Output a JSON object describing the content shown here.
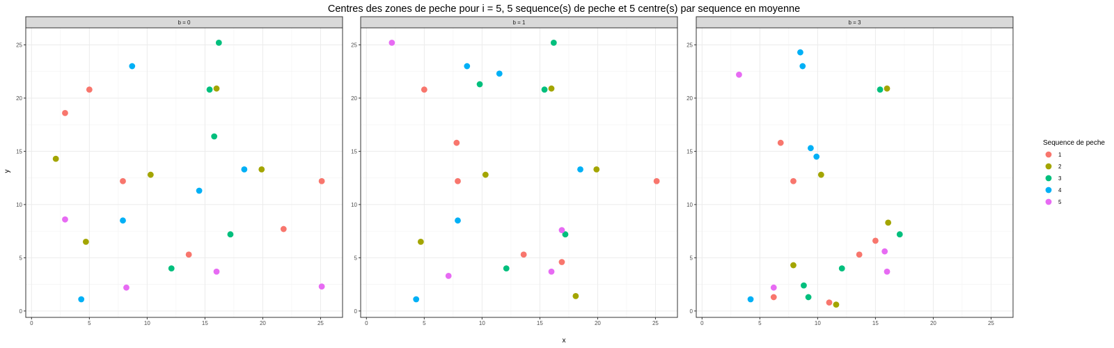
{
  "chart_data": {
    "type": "scatter",
    "title": "Centres des zones de peche pour i = 5, 5 sequence(s) de peche et 5 centre(s) par sequence en moyenne",
    "xlabel": "x",
    "ylabel": "y",
    "xlim": [
      -0.5,
      26.9
    ],
    "ylim": [
      -0.6,
      26.6
    ],
    "x_ticks": [
      0,
      5,
      10,
      15,
      20,
      25
    ],
    "y_ticks": [
      0,
      5,
      10,
      15,
      20,
      25
    ],
    "grid": true,
    "legend": {
      "title": "Sequence de peche",
      "position": "right",
      "entries": [
        "1",
        "2",
        "3",
        "4",
        "5"
      ]
    },
    "colors": {
      "1": "#F8766D",
      "2": "#A3A500",
      "3": "#00BF7D",
      "4": "#00B0F6",
      "5": "#E76BF3"
    },
    "panels": [
      {
        "label": "b = 0",
        "series": [
          {
            "name": "1",
            "points": [
              [
                5.0,
                20.8
              ],
              [
                2.9,
                18.6
              ],
              [
                7.9,
                12.2
              ],
              [
                25.1,
                12.2
              ],
              [
                21.8,
                7.7
              ],
              [
                13.6,
                5.3
              ]
            ]
          },
          {
            "name": "2",
            "points": [
              [
                16.0,
                20.9
              ],
              [
                2.1,
                14.3
              ],
              [
                10.3,
                12.8
              ],
              [
                19.9,
                13.3
              ],
              [
                4.7,
                6.5
              ]
            ]
          },
          {
            "name": "3",
            "points": [
              [
                16.2,
                25.2
              ],
              [
                15.4,
                20.8
              ],
              [
                15.8,
                16.4
              ],
              [
                17.2,
                7.2
              ],
              [
                12.1,
                4.0
              ]
            ]
          },
          {
            "name": "4",
            "points": [
              [
                8.7,
                23.0
              ],
              [
                18.4,
                13.3
              ],
              [
                14.5,
                11.3
              ],
              [
                7.9,
                8.5
              ],
              [
                4.3,
                1.1
              ]
            ]
          },
          {
            "name": "5",
            "points": [
              [
                2.9,
                8.6
              ],
              [
                16.0,
                3.7
              ],
              [
                8.2,
                2.2
              ],
              [
                25.1,
                2.3
              ]
            ]
          }
        ]
      },
      {
        "label": "b = 1",
        "series": [
          {
            "name": "1",
            "points": [
              [
                5.0,
                20.8
              ],
              [
                7.8,
                15.8
              ],
              [
                7.9,
                12.2
              ],
              [
                25.1,
                12.2
              ],
              [
                16.9,
                4.6
              ],
              [
                13.6,
                5.3
              ]
            ]
          },
          {
            "name": "2",
            "points": [
              [
                16.0,
                20.9
              ],
              [
                10.3,
                12.8
              ],
              [
                19.9,
                13.3
              ],
              [
                4.7,
                6.5
              ],
              [
                18.1,
                1.4
              ]
            ]
          },
          {
            "name": "3",
            "points": [
              [
                16.2,
                25.2
              ],
              [
                9.8,
                21.3
              ],
              [
                15.4,
                20.8
              ],
              [
                17.2,
                7.2
              ],
              [
                12.1,
                4.0
              ]
            ]
          },
          {
            "name": "4",
            "points": [
              [
                8.7,
                23.0
              ],
              [
                11.5,
                22.3
              ],
              [
                18.5,
                13.3
              ],
              [
                7.9,
                8.5
              ],
              [
                4.3,
                1.1
              ]
            ]
          },
          {
            "name": "5",
            "points": [
              [
                2.2,
                25.2
              ],
              [
                16.9,
                7.6
              ],
              [
                16.0,
                3.7
              ],
              [
                7.1,
                3.3
              ]
            ]
          }
        ]
      },
      {
        "label": "b = 3",
        "series": [
          {
            "name": "1",
            "points": [
              [
                6.8,
                15.8
              ],
              [
                7.9,
                12.2
              ],
              [
                15.0,
                6.6
              ],
              [
                13.6,
                5.3
              ],
              [
                6.2,
                1.3
              ],
              [
                11.0,
                0.8
              ]
            ]
          },
          {
            "name": "2",
            "points": [
              [
                16.0,
                20.9
              ],
              [
                10.3,
                12.8
              ],
              [
                16.1,
                8.3
              ],
              [
                7.9,
                4.3
              ],
              [
                11.6,
                0.6
              ]
            ]
          },
          {
            "name": "3",
            "points": [
              [
                15.4,
                20.8
              ],
              [
                17.1,
                7.2
              ],
              [
                12.1,
                4.0
              ],
              [
                8.8,
                2.4
              ],
              [
                9.2,
                1.3
              ]
            ]
          },
          {
            "name": "4",
            "points": [
              [
                8.5,
                24.3
              ],
              [
                8.7,
                23.0
              ],
              [
                9.4,
                15.3
              ],
              [
                9.9,
                14.5
              ],
              [
                4.2,
                1.1
              ]
            ]
          },
          {
            "name": "5",
            "points": [
              [
                3.2,
                22.2
              ],
              [
                15.8,
                5.6
              ],
              [
                16.0,
                3.7
              ],
              [
                6.2,
                2.2
              ]
            ]
          }
        ]
      }
    ]
  }
}
